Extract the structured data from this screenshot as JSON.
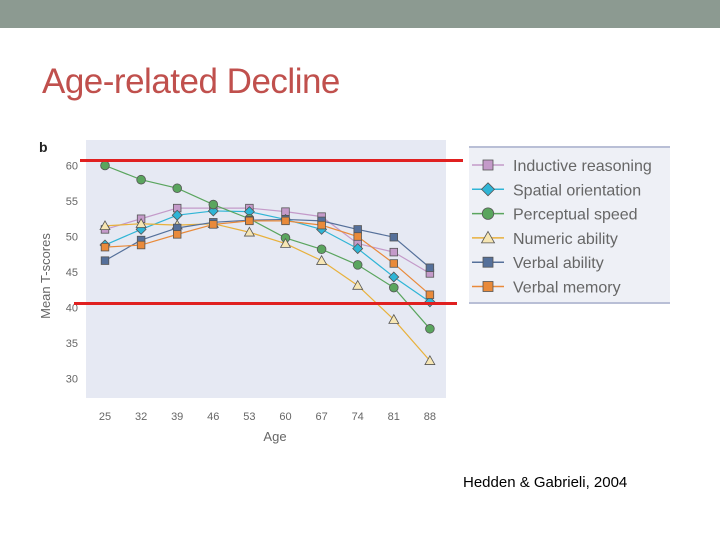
{
  "slide": {
    "title": "Age-related Decline",
    "citation": "Hedden & Gabrieli, 2004"
  },
  "colors": {
    "topbar": "#8c9a91",
    "title": "#c0504d",
    "highlight_line": "#e02020",
    "plot_bg": "#e6e9f3",
    "legend_bg": "#eef0f6"
  },
  "chart_data": {
    "type": "line",
    "panel_label": "b",
    "title": "",
    "xlabel": "Age",
    "ylabel": "Mean T-scores",
    "categories": [
      "25",
      "32",
      "39",
      "46",
      "53",
      "60",
      "67",
      "74",
      "81",
      "88"
    ],
    "ylim": [
      27,
      61
    ],
    "yticks": [
      30,
      35,
      40,
      45,
      50,
      55,
      60
    ],
    "grid": false,
    "legend_position": "right",
    "series": [
      {
        "name": "Inductive reasoning",
        "color": "#c49ac9",
        "marker": "square",
        "values": [
          51,
          52.5,
          54,
          54,
          54,
          53.5,
          52.8,
          49,
          47.8,
          44.8
        ]
      },
      {
        "name": "Spatial orientation",
        "color": "#2fb5d6",
        "marker": "diamond",
        "values": [
          48.8,
          51,
          53,
          53.6,
          53.5,
          52.4,
          51,
          48.3,
          44.3,
          40.8
        ]
      },
      {
        "name": "Perceptual speed",
        "color": "#5aa55e",
        "marker": "circle",
        "values": [
          60,
          58,
          56.8,
          54.5,
          52.5,
          49.8,
          48.2,
          46,
          42.8,
          37
        ]
      },
      {
        "name": "Numeric ability",
        "color": "#e8b13c",
        "marker": "triangle",
        "values": [
          51.5,
          51.8,
          51.6,
          51.8,
          50.6,
          49,
          46.6,
          43.1,
          38.3,
          32.5
        ]
      },
      {
        "name": "Verbal ability",
        "color": "#55709a",
        "marker": "square",
        "values": [
          46.6,
          49.5,
          51.2,
          52,
          52.3,
          52.4,
          52.2,
          51,
          49.9,
          45.6
        ]
      },
      {
        "name": "Verbal memory",
        "color": "#e98a3a",
        "marker": "square",
        "values": [
          48.5,
          48.8,
          50.3,
          51.7,
          52.2,
          52.2,
          51.6,
          50,
          46.2,
          41.8
        ]
      }
    ]
  }
}
